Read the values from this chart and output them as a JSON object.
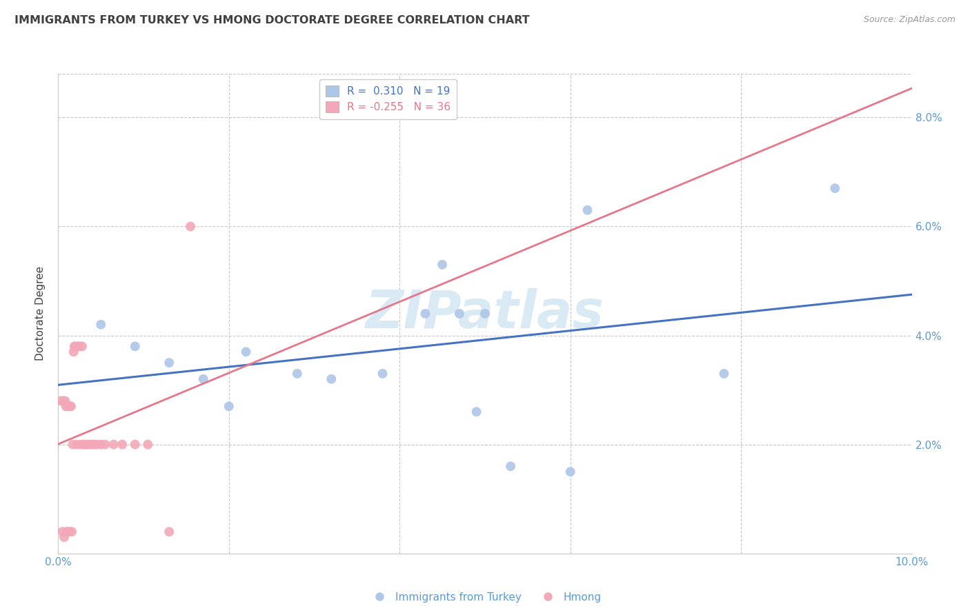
{
  "title": "IMMIGRANTS FROM TURKEY VS HMONG DOCTORATE DEGREE CORRELATION CHART",
  "source": "Source: ZipAtlas.com",
  "ylabel": "Doctorate Degree",
  "ytick_values": [
    2.0,
    4.0,
    6.0,
    8.0
  ],
  "xlim": [
    0.0,
    10.0
  ],
  "ylim": [
    0.0,
    8.8
  ],
  "legend_blue_r": "R =  0.310",
  "legend_blue_n": "N = 19",
  "legend_pink_r": "R = -0.255",
  "legend_pink_n": "N = 36",
  "turkey_x": [
    0.5,
    0.9,
    1.3,
    1.7,
    2.0,
    2.2,
    2.8,
    3.2,
    3.8,
    4.3,
    4.5,
    4.7,
    5.0,
    5.3,
    6.0,
    6.2,
    7.8,
    9.1,
    4.9
  ],
  "turkey_y": [
    4.2,
    3.8,
    3.5,
    3.2,
    2.7,
    3.7,
    3.3,
    3.2,
    3.3,
    4.4,
    5.3,
    4.4,
    4.4,
    1.6,
    1.5,
    6.3,
    3.3,
    6.7,
    2.6
  ],
  "hmong_x": [
    0.03,
    0.05,
    0.06,
    0.07,
    0.08,
    0.09,
    0.1,
    0.11,
    0.12,
    0.13,
    0.14,
    0.15,
    0.16,
    0.17,
    0.18,
    0.19,
    0.2,
    0.22,
    0.23,
    0.25,
    0.27,
    0.28,
    0.3,
    0.32,
    0.35,
    0.38,
    0.42,
    0.45,
    0.5,
    0.55,
    0.65,
    0.75,
    0.9,
    1.05,
    1.3,
    1.55
  ],
  "hmong_y": [
    2.8,
    0.4,
    2.8,
    0.3,
    2.8,
    2.7,
    0.4,
    2.7,
    0.4,
    0.4,
    2.7,
    2.7,
    0.4,
    2.0,
    3.7,
    3.8,
    3.8,
    2.0,
    3.8,
    3.8,
    2.0,
    3.8,
    2.0,
    2.0,
    2.0,
    2.0,
    2.0,
    2.0,
    2.0,
    2.0,
    2.0,
    2.0,
    2.0,
    2.0,
    0.4,
    6.0
  ],
  "blue_color": "#aec6e8",
  "pink_color": "#f2a8b8",
  "trend_blue_color": "#4472c4",
  "trend_pink_color": "#e8768a",
  "trend_pink_dash_color": "#e8a0b0",
  "background_color": "#ffffff",
  "grid_color": "#c8c8c8",
  "title_color": "#404040",
  "axis_label_color": "#5b9bd5",
  "watermark_color": "#daeaf5",
  "marker_size": 100
}
